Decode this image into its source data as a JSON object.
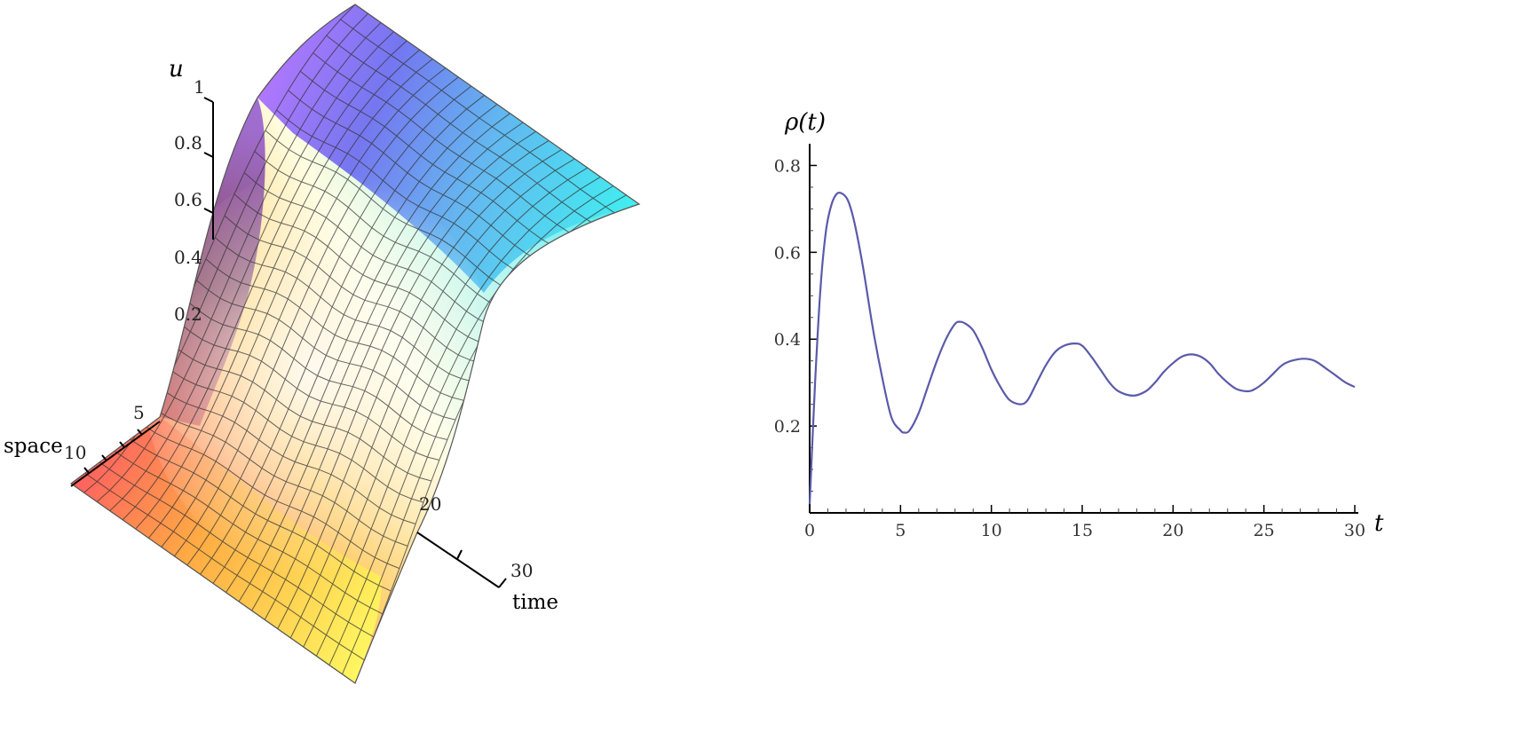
{
  "chart_data": [
    {
      "type": "surface",
      "zlabel": "u",
      "xlabel": "space",
      "ylabel": "time",
      "z_ticks": [
        "1",
        "0.8",
        "0.6",
        "0.4",
        "0.2"
      ],
      "space_ticks": [
        "5",
        "10"
      ],
      "time_ticks": [
        "20",
        "30"
      ],
      "zlim": [
        0,
        1
      ],
      "grid": true,
      "colormap": [
        "#ff6060",
        "#ffb060",
        "#ffff70",
        "#ffffff",
        "#70ffff",
        "#6060ff",
        "#c060ff"
      ]
    },
    {
      "type": "line",
      "xlabel": "t",
      "ylabel": "ρ(t)",
      "xlim": [
        0,
        30
      ],
      "ylim": [
        0,
        0.85
      ],
      "x_ticks": [
        0,
        5,
        10,
        15,
        20,
        25,
        30
      ],
      "y_ticks": [
        0.2,
        0.4,
        0.6,
        0.8
      ],
      "line_color": "#5a5aaa",
      "series": [
        {
          "x": [
            0,
            0.3,
            0.6,
            0.9,
            1.2,
            1.5,
            1.8,
            2.1,
            2.4,
            2.7,
            3.0,
            3.5,
            4.0,
            4.5,
            5.0,
            5.2,
            5.5,
            6.0,
            6.5,
            7.0,
            7.5,
            8.0,
            8.3,
            8.6,
            9.0,
            9.5,
            10.0,
            10.5,
            11.0,
            11.6,
            12.0,
            12.5,
            13.0,
            13.5,
            14.0,
            14.6,
            15.0,
            15.5,
            16.0,
            16.5,
            17.0,
            17.8,
            18.5,
            19.0,
            19.5,
            20.0,
            20.5,
            21.0,
            21.5,
            22.0,
            22.5,
            23.0,
            23.5,
            24.1,
            24.5,
            25.0,
            25.5,
            26.0,
            26.5,
            27.2,
            27.8,
            28.5,
            29.0,
            29.5,
            30.0
          ],
          "y": [
            0.02,
            0.3,
            0.52,
            0.65,
            0.71,
            0.735,
            0.735,
            0.72,
            0.68,
            0.62,
            0.55,
            0.42,
            0.31,
            0.22,
            0.19,
            0.185,
            0.19,
            0.23,
            0.29,
            0.35,
            0.4,
            0.435,
            0.44,
            0.435,
            0.42,
            0.38,
            0.33,
            0.29,
            0.26,
            0.25,
            0.26,
            0.3,
            0.34,
            0.37,
            0.385,
            0.39,
            0.385,
            0.36,
            0.33,
            0.3,
            0.28,
            0.27,
            0.28,
            0.3,
            0.325,
            0.345,
            0.36,
            0.365,
            0.36,
            0.345,
            0.32,
            0.3,
            0.285,
            0.28,
            0.285,
            0.3,
            0.32,
            0.34,
            0.35,
            0.355,
            0.35,
            0.33,
            0.315,
            0.3,
            0.29
          ]
        }
      ]
    }
  ]
}
